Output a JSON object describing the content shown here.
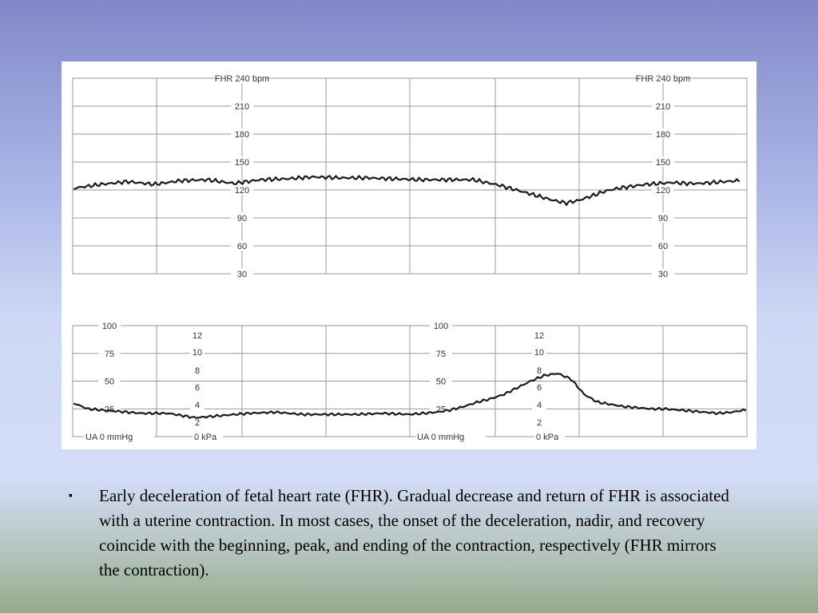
{
  "slide": {
    "bullet_symbol": "▪",
    "caption": "Early deceleration of fetal heart rate (FHR). Gradual decrease and return of FHR is associated with a uterine contraction. In most cases, the onset of the deceleration, nadir, and recovery coincide with the beginning, peak, and ending of the contraction, respectively (FHR mirrors the contraction)."
  },
  "chart_data": [
    {
      "type": "line",
      "panel": "fhr",
      "ylabel": "FHR 240 bpm",
      "yticks": [
        "210",
        "180",
        "150",
        "120",
        "90",
        "60",
        "30"
      ],
      "ylim": [
        30,
        240
      ],
      "xlim": [
        0,
        100
      ],
      "grid": true,
      "series": [
        {
          "x": [
            0,
            4,
            8,
            12,
            16,
            20,
            24,
            28,
            32,
            36,
            40,
            44,
            48,
            52,
            56,
            60,
            62,
            64,
            66,
            68,
            70,
            72,
            74,
            76,
            78,
            80,
            82,
            84,
            86,
            88,
            90,
            92,
            94,
            96,
            98,
            100
          ],
          "y": [
            122,
            126,
            129,
            126,
            130,
            131,
            127,
            131,
            132,
            134,
            133,
            133,
            132,
            131,
            131,
            131,
            128,
            125,
            121,
            117,
            113,
            109,
            106,
            109,
            114,
            119,
            122,
            124,
            126,
            127,
            128,
            127,
            127,
            128,
            129,
            130
          ]
        }
      ]
    },
    {
      "type": "line",
      "panel": "ua",
      "yticks_mmhg": [
        "100",
        "75",
        "50",
        "25"
      ],
      "yticks_kpa": [
        "12",
        "10",
        "8",
        "6",
        "4",
        "2"
      ],
      "ylabel_mmhg": "UA  0  mmHg",
      "ylabel_kpa": "0 kPa",
      "ylim": [
        0,
        100
      ],
      "xlim": [
        0,
        100
      ],
      "grid": true,
      "series": [
        {
          "x": [
            0,
            2,
            6,
            10,
            14,
            18,
            22,
            26,
            30,
            34,
            38,
            42,
            46,
            50,
            52,
            54,
            56,
            58,
            60,
            62,
            64,
            66,
            68,
            70,
            72,
            74,
            76,
            78,
            80,
            82,
            84,
            86,
            88,
            90,
            92,
            94,
            96,
            98,
            100
          ],
          "y": [
            30,
            25,
            23,
            21,
            21,
            17,
            19,
            21,
            22,
            20,
            20,
            20,
            21,
            20,
            21,
            22,
            24,
            27,
            31,
            34,
            38,
            44,
            50,
            55,
            57,
            52,
            38,
            31,
            29,
            27,
            26,
            25,
            25,
            24,
            23,
            22,
            21,
            22,
            24
          ]
        }
      ]
    }
  ]
}
